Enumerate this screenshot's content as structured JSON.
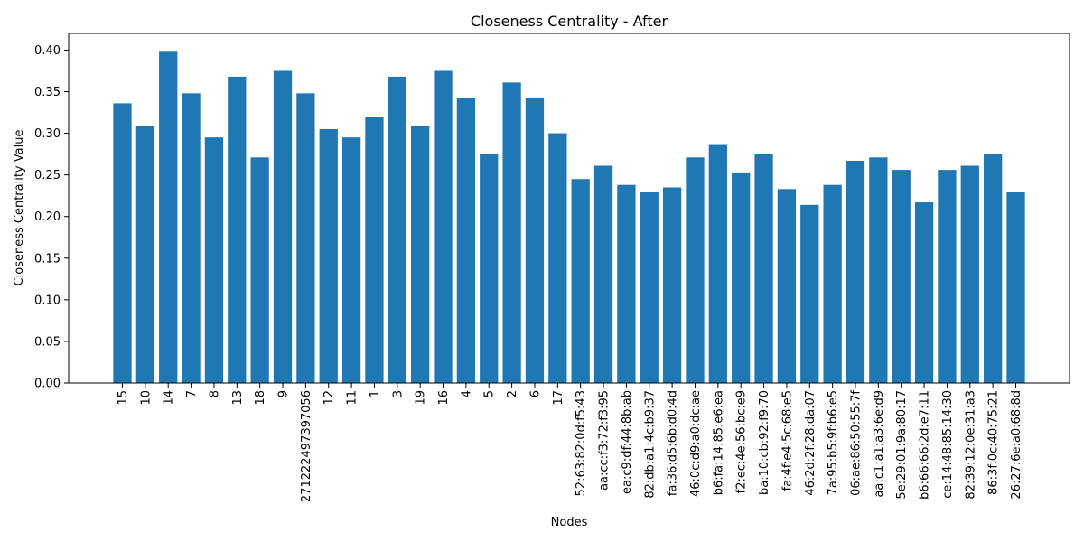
{
  "chart_data": {
    "type": "bar",
    "title": "Closeness Centrality - After",
    "xlabel": "Nodes",
    "ylabel": "Closeness Centrality Value",
    "ylim": [
      0,
      0.42
    ],
    "yticks": [
      "0.00",
      "0.05",
      "0.10",
      "0.15",
      "0.20",
      "0.25",
      "0.30",
      "0.35",
      "0.40"
    ],
    "grid": false,
    "legend": "none",
    "bar_color": "#1f77b4",
    "categories": [
      "15",
      "10",
      "14",
      "7",
      "8",
      "13",
      "18",
      "9",
      "271222497397056",
      "12",
      "11",
      "1",
      "3",
      "19",
      "16",
      "4",
      "5",
      "2",
      "6",
      "17",
      "52:63:82:0d:f5:43",
      "aa:cc:f3:72:f3:95",
      "ea:c9:df:44:8b:ab",
      "82:db:a1:4c:b9:37",
      "fa:36:d5:6b:d0:4d",
      "46:0c:d9:a0:dc:ae",
      "b6:fa:14:85:e6:ea",
      "f2:ec:4e:56:bc:e9",
      "ba:10:cb:92:f9:70",
      "fa:4f:e4:5c:68:e5",
      "46:2d:2f:28:da:07",
      "7a:95:b5:9f:b6:e5",
      "06:ae:86:50:55:7f",
      "aa:c1:a1:a3:6e:d9",
      "5e:29:01:9a:80:17",
      "b6:66:66:2d:e7:11",
      "ce:14:48:85:14:30",
      "82:39:12:0e:31:a3",
      "86:3f:0c:40:75:21",
      "26:27:6e:a0:68:8d"
    ],
    "values": [
      0.336,
      0.309,
      0.398,
      0.348,
      0.295,
      0.368,
      0.271,
      0.375,
      0.348,
      0.305,
      0.295,
      0.32,
      0.368,
      0.309,
      0.375,
      0.343,
      0.275,
      0.361,
      0.343,
      0.3,
      0.245,
      0.261,
      0.238,
      0.229,
      0.235,
      0.271,
      0.287,
      0.253,
      0.275,
      0.233,
      0.214,
      0.238,
      0.267,
      0.271,
      0.256,
      0.217,
      0.256,
      0.261,
      0.275,
      0.229
    ]
  }
}
